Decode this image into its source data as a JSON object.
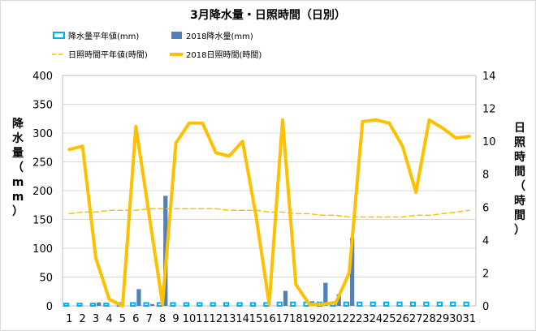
{
  "chart_data": {
    "type": "bar",
    "title": "3月降水量・日照時間（日別）",
    "ylabel_left": "降水量（mm）",
    "ylabel_right": "日照時間（時間）",
    "ylim_left": [
      0,
      400
    ],
    "ylim_right": [
      0,
      14
    ],
    "yticks_left": [
      "0",
      "50",
      "100",
      "150",
      "200",
      "250",
      "300",
      "350",
      "400"
    ],
    "yticks_right": [
      "0",
      "2",
      "4",
      "6",
      "8",
      "10",
      "12",
      "14"
    ],
    "categories": [
      "1",
      "2",
      "3",
      "4",
      "5",
      "6",
      "7",
      "8",
      "9",
      "10",
      "11",
      "12",
      "13",
      "14",
      "15",
      "16",
      "17",
      "18",
      "19",
      "20",
      "21",
      "22",
      "23",
      "24",
      "25",
      "26",
      "27",
      "28",
      "29",
      "30",
      "31"
    ],
    "grid": "horizontal",
    "legend_placement": "top",
    "series": [
      {
        "name": "降水量平年値(mm)",
        "type": "bar",
        "axis": "left",
        "color": "#00b0f0",
        "values": [
          4,
          4,
          4,
          4,
          5,
          5,
          5,
          5,
          5,
          5,
          5,
          5,
          5,
          5,
          5,
          5,
          6,
          6,
          6,
          6,
          6,
          6,
          6,
          6,
          6,
          6,
          6,
          6,
          6,
          6,
          6
        ]
      },
      {
        "name": "2018降水量(mm)",
        "type": "bar",
        "axis": "left",
        "color": "#4f81bd",
        "values": [
          0,
          0,
          6,
          0,
          0,
          29,
          3,
          191,
          0,
          0,
          0,
          0,
          0,
          0,
          0,
          0,
          26,
          0,
          8,
          40,
          20,
          118,
          0,
          0,
          0,
          0,
          0,
          0,
          0,
          0,
          0
        ]
      },
      {
        "name": "日照時間平年値(時間)",
        "type": "line",
        "axis": "right",
        "color": "#ffc000",
        "dashed": true,
        "values": [
          5.6,
          5.7,
          5.7,
          5.8,
          5.8,
          5.8,
          5.9,
          5.9,
          5.9,
          5.9,
          5.9,
          5.9,
          5.8,
          5.8,
          5.8,
          5.7,
          5.7,
          5.6,
          5.6,
          5.5,
          5.5,
          5.4,
          5.4,
          5.4,
          5.4,
          5.4,
          5.5,
          5.5,
          5.6,
          5.7,
          5.8
        ]
      },
      {
        "name": "2018日照時間(時間)",
        "type": "line",
        "axis": "right",
        "color": "#ffc000",
        "dashed": false,
        "values": [
          9.5,
          9.7,
          2.9,
          0.4,
          0.0,
          10.9,
          5.5,
          0.1,
          9.9,
          11.1,
          11.1,
          9.3,
          9.1,
          10.0,
          5.5,
          0.1,
          11.3,
          1.3,
          0.1,
          0.1,
          0.2,
          2.0,
          11.2,
          11.3,
          11.1,
          9.7,
          6.9,
          11.3,
          10.8,
          10.2,
          10.3
        ]
      }
    ]
  }
}
